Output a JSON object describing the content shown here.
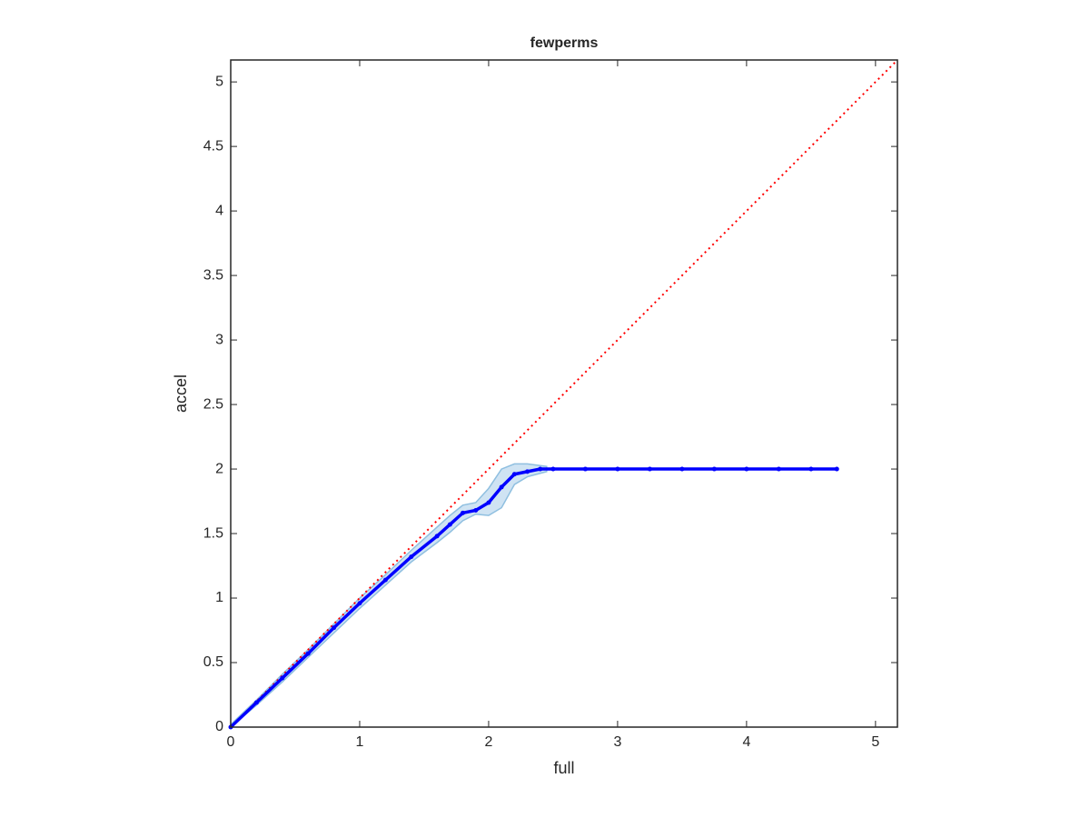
{
  "chart_data": {
    "type": "line",
    "title": "fewperms",
    "xlabel": "full",
    "ylabel": "accel",
    "xlim": [
      0,
      5.17
    ],
    "ylim": [
      0,
      5.17
    ],
    "xticks": [
      0,
      1,
      2,
      3,
      4,
      5
    ],
    "yticks": [
      0,
      0.5,
      1,
      1.5,
      2,
      2.5,
      3,
      3.5,
      4,
      4.5,
      5
    ],
    "band": {
      "color": "#cfe3f3",
      "edge": "#8fbfe0",
      "x": [
        0,
        0.2,
        0.4,
        0.6,
        0.8,
        1.0,
        1.2,
        1.4,
        1.6,
        1.7,
        1.8,
        1.9,
        2.0,
        2.1,
        2.2,
        2.3,
        2.45
      ],
      "upper": [
        0.02,
        0.21,
        0.41,
        0.6,
        0.8,
        1.0,
        1.18,
        1.37,
        1.55,
        1.64,
        1.72,
        1.74,
        1.85,
        2.0,
        2.04,
        2.04,
        2.02
      ],
      "lower": [
        0,
        0.17,
        0.35,
        0.54,
        0.73,
        0.92,
        1.1,
        1.28,
        1.43,
        1.51,
        1.6,
        1.65,
        1.64,
        1.7,
        1.88,
        1.94,
        1.98
      ]
    },
    "series": [
      {
        "color": "#ff0000",
        "style": "dotted",
        "x": [
          0,
          5.17
        ],
        "values": [
          0,
          5.17
        ]
      },
      {
        "color": "#0000ff",
        "style": "solid-dots",
        "x": [
          0,
          0.2,
          0.4,
          0.6,
          0.8,
          1.0,
          1.2,
          1.4,
          1.6,
          1.7,
          1.8,
          1.9,
          2.0,
          2.1,
          2.2,
          2.3,
          2.4,
          2.5,
          2.75,
          3.0,
          3.25,
          3.5,
          3.75,
          4.0,
          4.25,
          4.5,
          4.7
        ],
        "values": [
          0,
          0.19,
          0.38,
          0.57,
          0.77,
          0.96,
          1.14,
          1.32,
          1.48,
          1.57,
          1.66,
          1.68,
          1.74,
          1.86,
          1.96,
          1.98,
          2.0,
          2.0,
          2.0,
          2.0,
          2.0,
          2.0,
          2.0,
          2.0,
          2.0,
          2.0,
          2.0
        ]
      }
    ]
  }
}
